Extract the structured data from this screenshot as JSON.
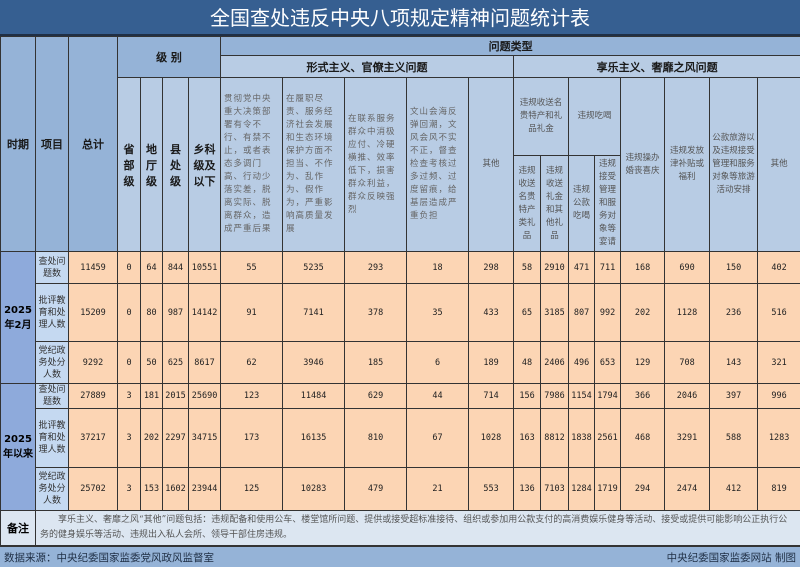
{
  "title": "全国查处违反中央八项规定精神问题统计表",
  "header": {
    "period": "时期",
    "item": "项目",
    "total": "总计",
    "level": "级 别",
    "levels": [
      "省部级",
      "地厅级",
      "县处级",
      "乡科级及以下"
    ],
    "problem_type": "问题类型",
    "formalism": "形式主义、官僚主义问题",
    "formalism_cols": [
      "贯彻党中央重大决策部署有令不行、有禁不止，或者表态多调门高、行动少落实差，脱离实际、脱离群众，造成严重后果",
      "在履职尽责、服务经济社会发展和生态环境保护方面不担当、不作为、乱作为、假作为，严重影响高质量发展",
      "在联系服务群众中消极应付、冷硬横推、效率低下，损害群众利益，群众反映强烈",
      "文山会海反弹回潮，文风会风不实不正，督查检查考核过多过频、过度留痕，给基层造成严重负担",
      "其他"
    ],
    "hedonism": "享乐主义、奢靡之风问题",
    "gifts": "违规收送名贵特产和礼品礼金",
    "gifts_sub": [
      "违规收送名贵特产类礼品",
      "违规收送礼金和其他礼品"
    ],
    "dining": "违规吃喝",
    "dining_sub": [
      "违规公款吃喝",
      "违规接受管理和服务对象等宴请"
    ],
    "hedonism_cols": [
      "违规操办婚丧喜庆",
      "违规发放津补贴或福利",
      "公款旅游以及违规接受管理和服务对象等旅游活动安排",
      "其他"
    ]
  },
  "periods": [
    {
      "label": "2025年2月",
      "rows": [
        {
          "item": "查处问题数",
          "values": [
            "11459",
            "0",
            "64",
            "844",
            "10551",
            "55",
            "5235",
            "293",
            "18",
            "298",
            "58",
            "2910",
            "471",
            "711",
            "168",
            "690",
            "150",
            "402"
          ]
        },
        {
          "item": "批评教育和处理人数",
          "values": [
            "15209",
            "0",
            "80",
            "987",
            "14142",
            "91",
            "7141",
            "378",
            "35",
            "433",
            "65",
            "3185",
            "807",
            "992",
            "202",
            "1128",
            "236",
            "516"
          ]
        },
        {
          "item": "党纪政务处分人数",
          "values": [
            "9292",
            "0",
            "50",
            "625",
            "8617",
            "62",
            "3946",
            "185",
            "6",
            "189",
            "48",
            "2406",
            "496",
            "653",
            "129",
            "708",
            "143",
            "321"
          ]
        }
      ]
    },
    {
      "label": "2025年以来",
      "rows": [
        {
          "item": "查处问题数",
          "values": [
            "27889",
            "3",
            "181",
            "2015",
            "25690",
            "123",
            "11484",
            "629",
            "44",
            "714",
            "156",
            "7986",
            "1154",
            "1794",
            "366",
            "2046",
            "397",
            "996"
          ]
        },
        {
          "item": "批评教育和处理人数",
          "values": [
            "37217",
            "3",
            "202",
            "2297",
            "34715",
            "173",
            "16135",
            "810",
            "67",
            "1028",
            "163",
            "8812",
            "1838",
            "2561",
            "468",
            "3291",
            "588",
            "1283"
          ]
        },
        {
          "item": "党纪政务处分人数",
          "values": [
            "25702",
            "3",
            "153",
            "1602",
            "23944",
            "125",
            "10283",
            "479",
            "21",
            "553",
            "136",
            "7103",
            "1284",
            "1719",
            "294",
            "2474",
            "412",
            "819"
          ]
        }
      ]
    }
  ],
  "note": {
    "label": "备注",
    "text": "享乐主义、奢靡之风“其他”问题包括：违规配备和使用公车、楼堂馆所问题、提供或接受超标准接待、组织或参加用公款支付的高消费娱乐健身等活动、接受或提供可能影响公正执行公务的健身娱乐等活动、违规出入私人会所、领导干部住房违规。"
  },
  "footer": {
    "source": "数据来源：中央纪委国家监委党风政风监督室",
    "credit": "中央纪委国家监委网站 制图"
  },
  "colors": {
    "title_bg": "#365f91",
    "header_bg": "#b8cce4",
    "data_bg": "#fcd5b4",
    "footer_bg": "#95b3d7"
  }
}
